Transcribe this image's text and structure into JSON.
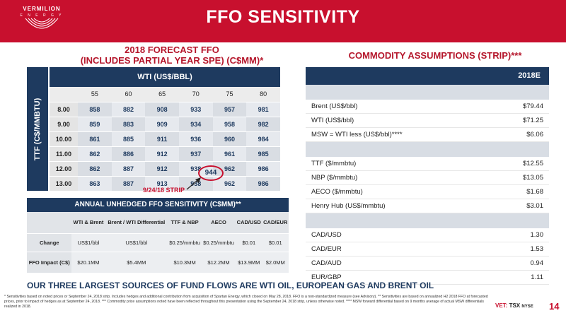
{
  "header": {
    "brand_name": "VERMILION",
    "brand_sub": "E N E R G Y",
    "title": "FFO SENSITIVITY",
    "bg_color": "#c8102e"
  },
  "left": {
    "title_line1": "2018 FORECAST FFO",
    "title_line2": "(INCLUDES PARTIAL YEAR SPE) (C$MM)*",
    "row_axis_label": "TTF (C$/MMBTU)",
    "col_axis_label": "WTI (US$/BBL)",
    "wti_values": [
      "55",
      "60",
      "65",
      "70",
      "75",
      "80"
    ],
    "rows": [
      {
        "ttf": "8.00",
        "values": [
          "858",
          "882",
          "908",
          "933",
          "957",
          "981"
        ]
      },
      {
        "ttf": "9.00",
        "values": [
          "859",
          "883",
          "909",
          "934",
          "958",
          "982"
        ]
      },
      {
        "ttf": "10.00",
        "values": [
          "861",
          "885",
          "911",
          "936",
          "960",
          "984"
        ]
      },
      {
        "ttf": "11.00",
        "values": [
          "862",
          "886",
          "912",
          "937",
          "961",
          "985"
        ]
      },
      {
        "ttf": "12.00",
        "values": [
          "862",
          "887",
          "912",
          "938",
          "962",
          "986"
        ]
      },
      {
        "ttf": "13.00",
        "values": [
          "863",
          "887",
          "913",
          "938",
          "962",
          "986"
        ]
      }
    ],
    "highlight_value": "944",
    "strip_label": "9/24/18 STRIP"
  },
  "annual": {
    "title": "ANNUAL UNHEDGED FFO SENSITIVITY (C$MM)**",
    "headers": [
      "WTI & Brent",
      "Brent / WTI Differential",
      "TTF & NBP",
      "AECO",
      "CAD/USD",
      "CAD/EUR"
    ],
    "change_label": "Change",
    "change": [
      "US$1/bbl",
      "US$1/bbl",
      "$0.25/mmbtu",
      "$0.25/mmbtu",
      "$0.01",
      "$0.01"
    ],
    "impact_label": "FFO Impact (C$)",
    "impact": [
      "$20.1MM",
      "$5.4MM",
      "$10.3MM",
      "$12.2MM",
      "$13.9MM",
      "$2.0MM"
    ]
  },
  "commodity": {
    "title": "COMMODITY ASSUMPTIONS (STRIP)***",
    "column": "2018E",
    "group1": [
      {
        "label": "Brent (US$/bbl)",
        "value": "$79.44"
      },
      {
        "label": "WTI (US$/bbl)",
        "value": "$71.25"
      },
      {
        "label": "MSW = WTI less (US$/bbl)****",
        "value": "$6.06"
      }
    ],
    "group2": [
      {
        "label": "TTF ($/mmbtu)",
        "value": "$12.55"
      },
      {
        "label": "NBP ($/mmbtu)",
        "value": "$13.05"
      },
      {
        "label": "AECO ($/mmbtu)",
        "value": "$1.68"
      },
      {
        "label": "Henry Hub (US$/mmbtu)",
        "value": "$3.01"
      }
    ],
    "group3": [
      {
        "label": "CAD/USD",
        "value": "1.30"
      },
      {
        "label": "CAD/EUR",
        "value": "1.53"
      },
      {
        "label": "CAD/AUD",
        "value": "0.94"
      },
      {
        "label": "EUR/GBP",
        "value": "1.11"
      }
    ]
  },
  "banner": "OUR THREE LARGEST SOURCES OF FUND FLOWS ARE WTI OIL, EUROPEAN GAS AND BRENT OIL",
  "footnote": "* Sensitivities based on noted prices or September 24, 2018 strip. Includes hedges and additional contribution from acquisition of Spartan Energy, which closed on May 28, 2018. FFO is a non-standardized measure (see Advisory). ** Sensitivities are based on annualized H2 2018 FFO at forecasted prices, prior to impact of hedges as at September 24, 2018. *** Commodity price assumptions noted have been reflected throughout this presentation using the September 24, 2018 strip, unless otherwise noted. **** MSW forward differential based on 9 months average of actual MSW differentials realized in 2018.",
  "exchange": {
    "vet": "VET:",
    "tsx": "TSX",
    "nyse": "NYSE"
  },
  "page_number": "14"
}
